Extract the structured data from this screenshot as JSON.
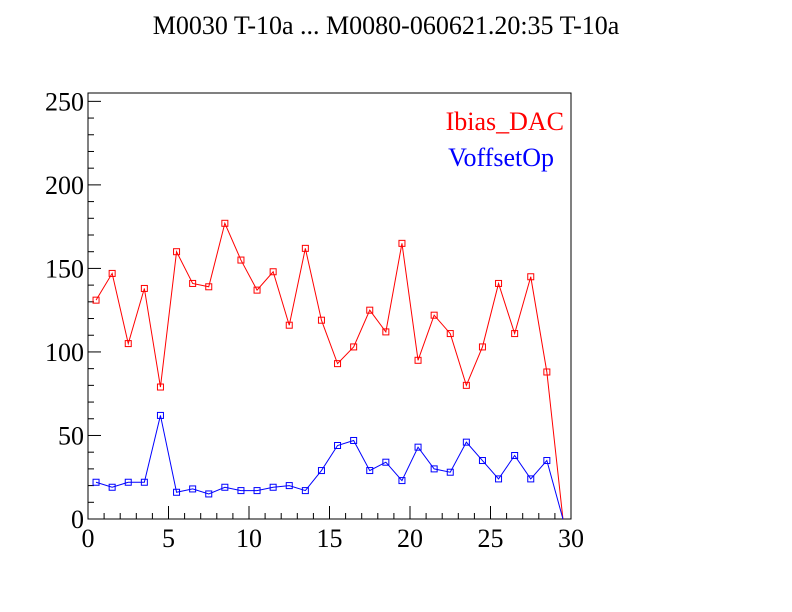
{
  "chart_data": {
    "type": "line",
    "title": "M0030 T-10a ... M0080-060621.20:35 T-10a",
    "xlabel": "",
    "ylabel": "",
    "xlim": [
      0,
      30
    ],
    "ylim": [
      0,
      255
    ],
    "x_ticks": [
      "0",
      "5",
      "10",
      "15",
      "20",
      "25",
      "30"
    ],
    "y_ticks": [
      "0",
      "50",
      "100",
      "150",
      "200",
      "250"
    ],
    "grid": false,
    "legend_position": "top-right",
    "x": [
      0.5,
      1.5,
      2.5,
      3.5,
      4.5,
      5.5,
      6.5,
      7.5,
      8.5,
      9.5,
      10.5,
      11.5,
      12.5,
      13.5,
      14.5,
      15.5,
      16.5,
      17.5,
      18.5,
      19.5,
      20.5,
      21.5,
      22.5,
      23.5,
      24.5,
      25.5,
      26.5,
      27.5,
      28.5,
      29.5
    ],
    "series": [
      {
        "name": "Ibias_DAC",
        "color": "#ff0000",
        "values": [
          131,
          147,
          105,
          138,
          79,
          160,
          141,
          139,
          177,
          155,
          137,
          148,
          116,
          162,
          119,
          93,
          103,
          125,
          112,
          165,
          95,
          122,
          111,
          80,
          103,
          141,
          111,
          145,
          88,
          0
        ]
      },
      {
        "name": "VoffsetOp",
        "color": "#0000ff",
        "values": [
          22,
          19,
          22,
          22,
          62,
          16,
          18,
          15,
          19,
          17,
          17,
          19,
          20,
          17,
          29,
          44,
          47,
          29,
          34,
          23,
          43,
          30,
          28,
          46,
          35,
          24,
          38,
          24,
          35,
          0
        ]
      }
    ]
  }
}
